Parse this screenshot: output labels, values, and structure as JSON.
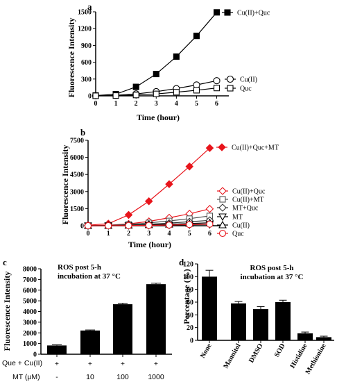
{
  "chart_data": [
    {
      "panel": "a",
      "type": "line",
      "xlabel": "Time (hour)",
      "ylabel": "Fluorescence Intensity",
      "xlim": [
        0,
        6.6
      ],
      "ylim": [
        0,
        1500
      ],
      "xticks": [
        "0",
        "1",
        "2",
        "3",
        "4",
        "5",
        "6"
      ],
      "yticks": [
        "0",
        "300",
        "600",
        "900",
        "1200",
        "1500"
      ],
      "legend_position": "right",
      "series": [
        {
          "name": "Cu(II)+Quc",
          "marker": "square-filled",
          "color": "#000000",
          "x": [
            0,
            1,
            2,
            3,
            4,
            5,
            6
          ],
          "y": [
            5,
            30,
            160,
            390,
            700,
            1070,
            1490
          ],
          "err": [
            0,
            0,
            0,
            0,
            30,
            40,
            30
          ]
        },
        {
          "name": "Cu(II)",
          "marker": "circle-open",
          "color": "#000000",
          "x": [
            0,
            1,
            2,
            3,
            4,
            5,
            6
          ],
          "y": [
            2,
            10,
            35,
            75,
            130,
            195,
            270
          ]
        },
        {
          "name": "Quc",
          "marker": "square-open",
          "color": "#000000",
          "x": [
            0,
            1,
            2,
            3,
            4,
            5,
            6
          ],
          "y": [
            1,
            5,
            15,
            35,
            65,
            100,
            140
          ]
        }
      ]
    },
    {
      "panel": "b",
      "type": "line",
      "xlabel": "Time (hour)",
      "ylabel": "Fluorescence Intensity",
      "xlim": [
        0,
        6.6
      ],
      "ylim": [
        0,
        7500
      ],
      "xticks": [
        "0",
        "1",
        "2",
        "3",
        "4",
        "5",
        "6"
      ],
      "yticks": [
        "0",
        "1500",
        "3000",
        "4500",
        "6000",
        "7500"
      ],
      "legend_position": "right",
      "series": [
        {
          "name": "Cu(II)+Quc+MT",
          "marker": "diamond-filled",
          "color": "#e8141b",
          "x": [
            0,
            1,
            2,
            3,
            4,
            5,
            6
          ],
          "y": [
            50,
            180,
            950,
            2150,
            3650,
            5200,
            6820
          ]
        },
        {
          "name": "Cu(II)+Quc",
          "marker": "diamond-open",
          "color": "#e8141b",
          "x": [
            0,
            1,
            2,
            3,
            4,
            5,
            6
          ],
          "y": [
            10,
            50,
            160,
            380,
            700,
            1050,
            1480
          ]
        },
        {
          "name": "Cu(II)+MT",
          "marker": "square-open",
          "color": "#555555",
          "x": [
            0,
            1,
            2,
            3,
            4,
            5,
            6
          ],
          "y": [
            5,
            30,
            110,
            250,
            420,
            620,
            860
          ]
        },
        {
          "name": "MT+Quc",
          "marker": "diamond-open",
          "color": "#333333",
          "x": [
            0,
            1,
            2,
            3,
            4,
            5,
            6
          ],
          "y": [
            3,
            15,
            60,
            130,
            230,
            350,
            470
          ]
        },
        {
          "name": "MT",
          "marker": "triangle-down-open",
          "color": "#000000",
          "x": [
            0,
            1,
            2,
            3,
            4,
            5,
            6
          ],
          "y": [
            1,
            5,
            15,
            30,
            55,
            85,
            120
          ]
        },
        {
          "name": "Cu(II)",
          "marker": "triangle-up-open",
          "color": "#000000",
          "x": [
            0,
            1,
            2,
            3,
            4,
            5,
            6
          ],
          "y": [
            2,
            10,
            30,
            70,
            120,
            190,
            260
          ]
        },
        {
          "name": "Quc",
          "marker": "circle-open",
          "color": "#e8141b",
          "x": [
            0,
            1,
            2,
            3,
            4,
            5,
            6
          ],
          "y": [
            1,
            5,
            15,
            30,
            60,
            100,
            140
          ]
        }
      ]
    },
    {
      "panel": "c",
      "type": "bar",
      "ylabel": "Fluorescence Intensity",
      "annotation": [
        "ROS post 5-h",
        "incubation at 37 °C"
      ],
      "ylim": [
        0,
        8000
      ],
      "yticks": [
        "0",
        "1000",
        "2000",
        "3000",
        "4000",
        "5000",
        "6000",
        "7000",
        "8000"
      ],
      "row_labels": [
        "Que + Cu(II)",
        "MT (μM)"
      ],
      "categories_row1": [
        "+",
        "+",
        "+",
        "+"
      ],
      "categories_row2": [
        "-",
        "10",
        "100",
        "1000"
      ],
      "values": [
        820,
        2220,
        4680,
        6560
      ],
      "err": [
        60,
        50,
        100,
        90
      ],
      "color": "#000000"
    },
    {
      "panel": "d",
      "type": "bar",
      "ylabel": "Percentage (%)",
      "annotation": [
        "ROS post 5-h",
        "incubation at 37 °C"
      ],
      "ylim": [
        0,
        120
      ],
      "yticks": [
        "0",
        "20",
        "40",
        "60",
        "80",
        "100",
        "120"
      ],
      "categories": [
        "None",
        "Mannitol",
        "DMSO",
        "SOD",
        "Histidine",
        "Methionine"
      ],
      "values": [
        100,
        58,
        49,
        60,
        11,
        5
      ],
      "err": [
        10,
        3,
        4,
        3,
        2,
        1.5
      ],
      "color": "#000000"
    }
  ]
}
